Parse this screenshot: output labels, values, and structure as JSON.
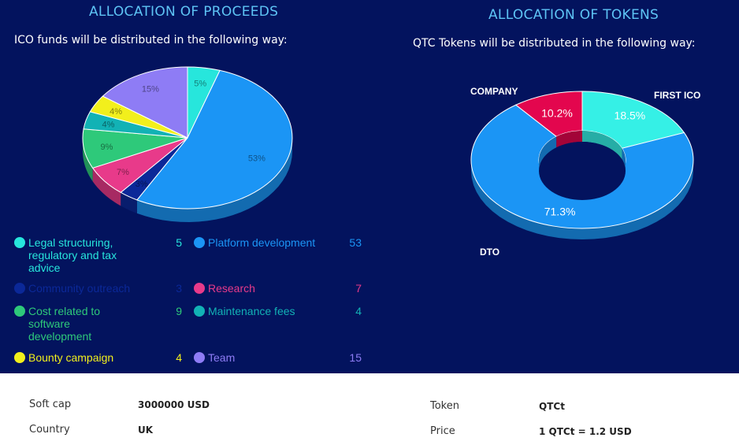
{
  "proceeds": {
    "title": "ALLOCATION OF PROCEEDS",
    "subtitle": "ICO funds will  be distributed in the following way:"
  },
  "tokens": {
    "title": "ALLOCATION OF TOKENS",
    "subtitle": "QTC Tokens will  be distributed in the following way:"
  },
  "chart_data": [
    {
      "type": "pie",
      "title": "ALLOCATION OF PROCEEDS",
      "slices": [
        {
          "label": "Legal structuring, regulatory and tax advice",
          "value": 5,
          "pct_label": "5%",
          "color": "#27e6dc"
        },
        {
          "label": "Platform development",
          "value": 53,
          "pct_label": "53%",
          "color": "#1b95f5"
        },
        {
          "label": "Community outreach",
          "value": 3,
          "pct_label": "3%",
          "color": "#0b2898"
        },
        {
          "label": "Research",
          "value": 7,
          "pct_label": "7%",
          "color": "#e83a8a"
        },
        {
          "label": "Cost related to software development",
          "value": 9,
          "pct_label": "9%",
          "color": "#2ec97a"
        },
        {
          "label": "Maintenance fees",
          "value": 4,
          "pct_label": "4%",
          "color": "#12b2b5"
        },
        {
          "label": "Bounty campaign",
          "value": 4,
          "pct_label": "4%",
          "color": "#f2ef1c"
        },
        {
          "label": "Team",
          "value": 15,
          "pct_label": "15%",
          "color": "#8e7cf5"
        }
      ]
    },
    {
      "type": "pie",
      "title": "ALLOCATION OF TOKENS",
      "slices": [
        {
          "label": "FIRST ICO",
          "value": 18.5,
          "pct_label": "18.5%",
          "color": "#35f0e6"
        },
        {
          "label": "DTO",
          "value": 71.3,
          "pct_label": "71.3%",
          "color": "#1b95f5"
        },
        {
          "label": "COMPANY",
          "value": 10.2,
          "pct_label": "10.2%",
          "color": "#e3064e"
        }
      ]
    }
  ],
  "legend_text_colors": [
    "#27e6dc",
    "#1b95f5",
    "#0b2898",
    "#e83a8a",
    "#2ec97a",
    "#12b2b5",
    "#f2ef1c",
    "#8e7cf5"
  ],
  "info": {
    "soft_cap_label": "Soft cap",
    "soft_cap_value": "3000000 USD",
    "country_label": "Country",
    "country_value": "UK",
    "token_label": "Token",
    "token_value": "QTCt",
    "price_label": "Price",
    "price_value": "1 QTCt = 1.2 USD"
  }
}
